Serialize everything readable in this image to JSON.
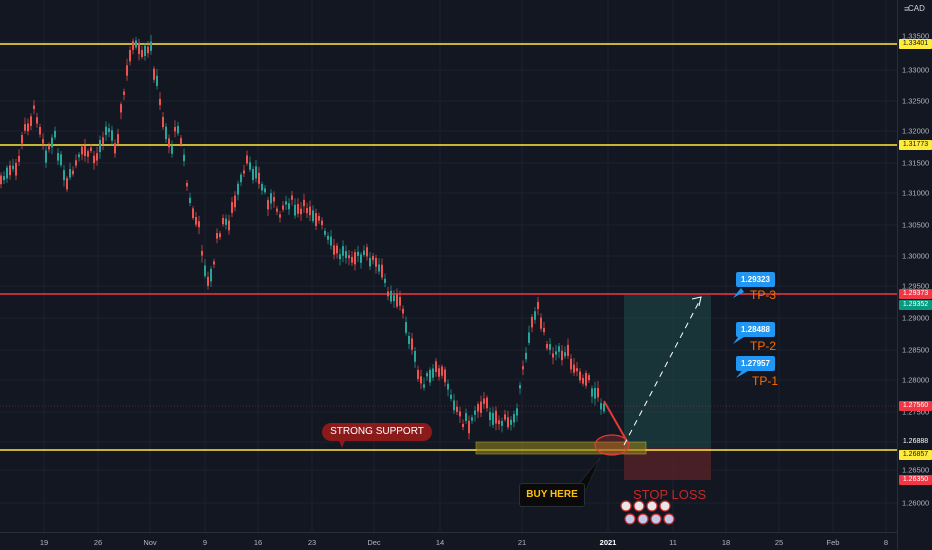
{
  "price_axis": {
    "currency": "CAD",
    "ticks": [
      "1.33500",
      "1.33000",
      "1.32500",
      "1.32000",
      "1.31500",
      "1.31000",
      "1.30500",
      "1.30000",
      "1.29500",
      "1.29000",
      "1.28500",
      "1.28000",
      "1.27500",
      "1.27000",
      "1.26500",
      "1.26000"
    ],
    "tags": {
      "resistance_top": "1.33401",
      "resistance_mid": "1.31773",
      "tp3_line": "1.29373",
      "current_price": "1.29352",
      "last_price": "1.27560",
      "box_top": "1.26888",
      "support": "1.26857",
      "stop_loss": "1.26350"
    }
  },
  "time_axis": {
    "ticks": [
      "19",
      "26",
      "Nov",
      "9",
      "16",
      "23",
      "Dec",
      "14",
      "21",
      "2021",
      "11",
      "18",
      "25",
      "Feb",
      "8"
    ]
  },
  "annotations": {
    "tp3_price": "1.29323",
    "tp3_label": "TP-3",
    "tp2_price": "1.28488",
    "tp2_label": "TP-2",
    "tp1_price": "1.27957",
    "tp1_label": "TP-1",
    "strong_support": "STRONG SUPPORT",
    "buy_here": "BUY HERE",
    "stop_loss": "STOP LOSS"
  },
  "colors": {
    "background": "#131722",
    "bull": "#26a69a",
    "bear": "#ef5350",
    "support_line": "#ffeb3b",
    "tp_line": "#f23645",
    "profit_zone": "#1e4d4a",
    "loss_zone": "#5c2328"
  },
  "icons": {
    "settings": "settings-icon",
    "emoji_row": "emoji-stickers"
  }
}
